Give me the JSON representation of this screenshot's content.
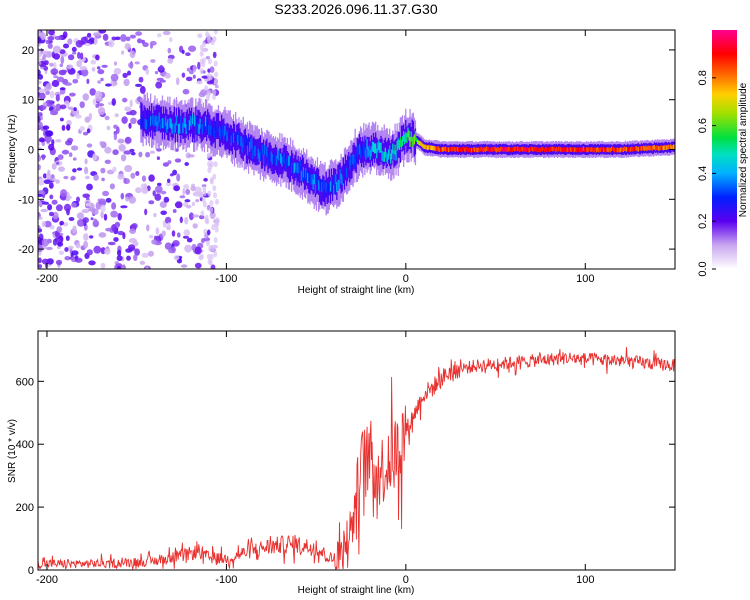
{
  "figure": {
    "title": "S233.2026.096.11.37.G30"
  },
  "chart_data": [
    {
      "type": "heatmap",
      "name": "spectrogram",
      "xlabel": "Height of straight line (km)",
      "ylabel": "Frequency (Hz)",
      "xlim": [
        -205,
        150
      ],
      "ylim": [
        -24,
        24
      ],
      "xticks": [
        -200,
        -100,
        0,
        100
      ],
      "yticks": [
        -20,
        -10,
        0,
        10,
        20
      ],
      "colorbar": {
        "label": "Normalized spectral amplitude",
        "range": [
          0,
          1
        ],
        "ticks": [
          0.0,
          0.2,
          0.4,
          0.6,
          0.8
        ],
        "tick_labels": [
          "0.0",
          "0.2",
          "0.4",
          "0.6",
          "0.8"
        ]
      },
      "ridge": {
        "description_x_km": [
          -145,
          -130,
          -115,
          -100,
          -90,
          -80,
          -70,
          -60,
          -50,
          -45,
          -40,
          -35,
          -30,
          -25,
          -20,
          -15,
          -10,
          -5,
          0,
          5,
          10,
          20,
          40,
          60,
          80,
          100,
          120,
          150
        ],
        "frequency_hz": [
          6,
          5,
          5,
          3,
          1,
          -1,
          -2,
          -4,
          -7,
          -8,
          -7,
          -5,
          -2,
          0,
          0,
          0,
          -1,
          0,
          3,
          2,
          0.5,
          0,
          0,
          0,
          0,
          0,
          0,
          0.5
        ],
        "amplitude": [
          0.3,
          0.35,
          0.35,
          0.3,
          0.3,
          0.3,
          0.35,
          0.35,
          0.35,
          0.3,
          0.35,
          0.3,
          0.3,
          0.35,
          0.4,
          0.45,
          0.4,
          0.45,
          0.55,
          0.6,
          0.75,
          0.85,
          0.88,
          0.9,
          0.9,
          0.88,
          0.85,
          0.8
        ]
      }
    },
    {
      "type": "line",
      "name": "snr",
      "xlabel": "Height of straight line (km)",
      "ylabel": "SNR (10 * v/v)",
      "xlim": [
        -205,
        150
      ],
      "ylim": [
        0,
        760
      ],
      "xticks": [
        -200,
        -100,
        0,
        100
      ],
      "yticks": [
        0,
        200,
        400,
        600
      ],
      "color": "#e8302e",
      "series": [
        {
          "name": "SNR",
          "x": [
            -205,
            -180,
            -160,
            -140,
            -125,
            -115,
            -110,
            -100,
            -90,
            -80,
            -70,
            -60,
            -50,
            -40,
            -35,
            -30,
            -25,
            -20,
            -15,
            -10,
            -5,
            0,
            5,
            10,
            15,
            20,
            25,
            30,
            40,
            50,
            60,
            70,
            80,
            90,
            100,
            110,
            120,
            130,
            140,
            150
          ],
          "values": [
            20,
            20,
            22,
            28,
            45,
            60,
            40,
            35,
            55,
            70,
            80,
            80,
            70,
            30,
            60,
            140,
            330,
            360,
            310,
            340,
            380,
            440,
            500,
            560,
            580,
            610,
            630,
            640,
            650,
            655,
            660,
            665,
            670,
            675,
            670,
            668,
            665,
            660,
            655,
            650
          ]
        }
      ]
    }
  ]
}
